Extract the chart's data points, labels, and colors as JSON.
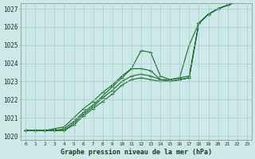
{
  "background_color": "#cce8e8",
  "grid_color": "#aacccc",
  "line_color": "#1a6b2a",
  "marker_color": "#1a6b2a",
  "title": "Graphe pression niveau de la mer (hPa)",
  "ylabel_min": 1020,
  "ylabel_max": 1027,
  "x_labels": [
    "0",
    "1",
    "2",
    "3",
    "4",
    "5",
    "6",
    "7",
    "8",
    "9",
    "10",
    "11",
    "12",
    "13",
    "14",
    "15",
    "16",
    "17",
    "18",
    "19",
    "20",
    "21",
    "22",
    "23"
  ],
  "series": [
    [
      1020.3,
      1020.3,
      1020.3,
      1020.3,
      1020.3,
      1020.6,
      1021.1,
      1021.5,
      1021.9,
      1022.3,
      1022.8,
      1023.1,
      1023.2,
      1023.1,
      1023.0,
      1023.0,
      1023.1,
      1023.2,
      1026.2,
      1026.7,
      1027.0,
      1027.2,
      1027.4,
      1027.6
    ],
    [
      1020.3,
      1020.3,
      1020.3,
      1020.3,
      1020.3,
      1020.7,
      1021.2,
      1021.6,
      1022.1,
      1022.5,
      1023.0,
      1023.3,
      1023.4,
      1023.3,
      1023.1,
      1023.0,
      1023.1,
      1023.2,
      1026.2,
      1026.7,
      1027.0,
      1027.2,
      1027.4,
      1027.6
    ],
    [
      1020.3,
      1020.3,
      1020.3,
      1020.3,
      1020.4,
      1020.8,
      1021.3,
      1021.7,
      1022.2,
      1022.7,
      1023.2,
      1023.7,
      1024.7,
      1024.6,
      1023.3,
      1023.1,
      1023.2,
      1025.0,
      1026.2,
      1026.7,
      1027.0,
      1027.2,
      1027.4,
      1027.6
    ],
    [
      1020.3,
      1020.3,
      1020.3,
      1020.4,
      1020.5,
      1021.0,
      1021.5,
      1021.9,
      1022.4,
      1022.8,
      1023.3,
      1023.7,
      1023.7,
      1023.6,
      1023.1,
      1023.1,
      1023.2,
      1023.3,
      1026.2,
      1026.7,
      1027.0,
      1027.2,
      1027.4,
      1027.6
    ]
  ]
}
